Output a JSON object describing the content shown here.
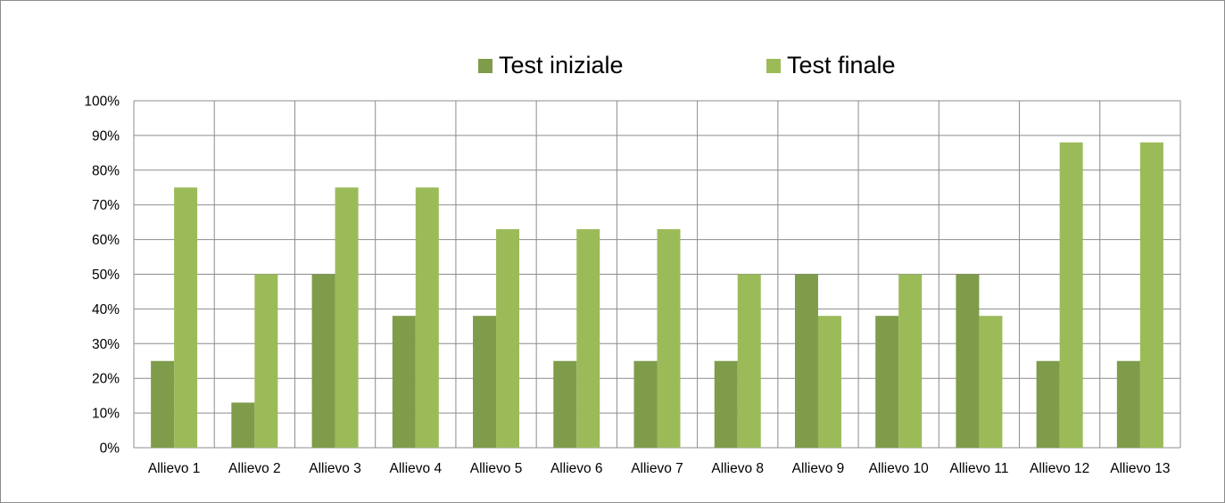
{
  "chart_data": {
    "type": "bar",
    "categories": [
      "Allievo 1",
      "Allievo 2",
      "Allievo 3",
      "Allievo 4",
      "Allievo 5",
      "Allievo 6",
      "Allievo 7",
      "Allievo 8",
      "Allievo 9",
      "Allievo 10",
      "Allievo 11",
      "Allievo 12",
      "Allievo 13"
    ],
    "series": [
      {
        "name": "Test iniziale",
        "color": "#7f9c4a",
        "values": [
          25,
          13,
          50,
          38,
          38,
          25,
          25,
          25,
          50,
          38,
          50,
          25,
          25
        ]
      },
      {
        "name": "Test finale",
        "color": "#9bbb59",
        "values": [
          75,
          50,
          75,
          75,
          63,
          63,
          63,
          50,
          38,
          50,
          38,
          88,
          88
        ]
      }
    ],
    "title": "",
    "xlabel": "",
    "ylabel": "",
    "ylim": [
      0,
      100
    ],
    "yticks": [
      "0%",
      "10%",
      "20%",
      "30%",
      "40%",
      "50%",
      "60%",
      "70%",
      "80%",
      "90%",
      "100%"
    ],
    "grid": true,
    "legend_position": "top"
  }
}
